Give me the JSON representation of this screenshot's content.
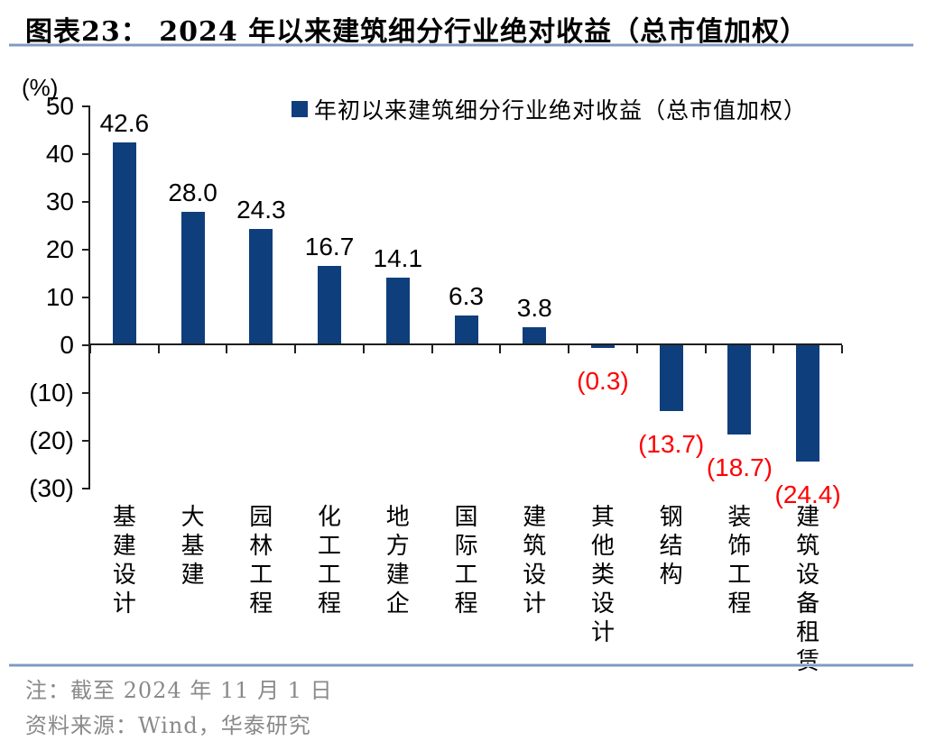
{
  "figure": {
    "title": "图表23： 2024 年以来建筑细分行业绝对收益（总市值加权）",
    "note": "注：截至 2024 年 11 月 1 日",
    "source": "资料来源：Wind，华泰研究"
  },
  "chart_data": {
    "type": "bar",
    "title": "2024 年以来建筑细分行业绝对收益（总市值加权）",
    "legend_label": "年初以来建筑细分行业绝对收益（总市值加权）",
    "legend_position": "top-right",
    "unit_label": "(%)",
    "grid": "off",
    "categories": [
      "基建设计",
      "大基建",
      "园林工程",
      "化工工程",
      "地方建企",
      "国际工程",
      "建筑设计",
      "其他类设计",
      "钢结构",
      "装饰工程",
      "建筑设备租赁"
    ],
    "values": [
      42.6,
      28.0,
      24.3,
      16.7,
      14.1,
      6.3,
      3.8,
      -0.3,
      -13.7,
      -18.7,
      -24.4
    ],
    "value_labels": [
      "42.6",
      "28.0",
      "24.3",
      "16.7",
      "14.1",
      "6.3",
      "3.8",
      "(0.3)",
      "(13.7)",
      "(18.7)",
      "(24.4)"
    ],
    "ylim": [
      -30,
      50
    ],
    "ytick_interval": 10,
    "ytick_labels": [
      "50",
      "40",
      "30",
      "20",
      "10",
      "0",
      "(10)",
      "(20)",
      "(30)"
    ],
    "bar_color": "#0F3E7D",
    "positive_label_color": "#000000",
    "negative_label_color": "#FF0000",
    "axis_color": "#1F1F1F"
  }
}
